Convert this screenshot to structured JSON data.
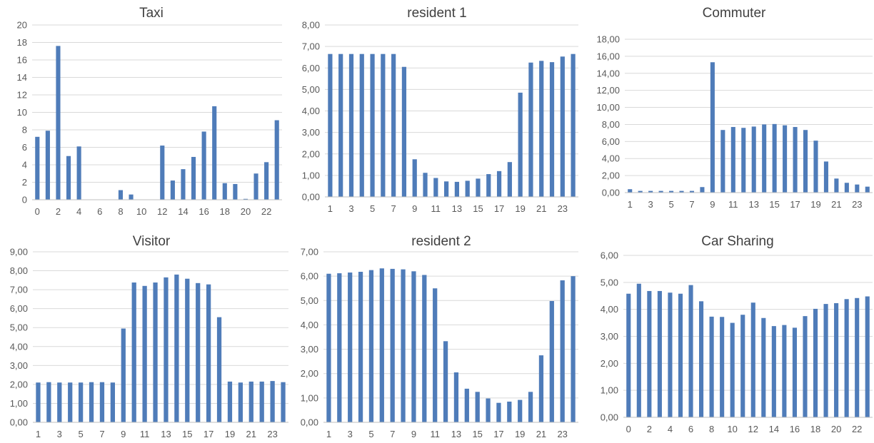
{
  "chart_data": [
    {
      "type": "bar",
      "title": "Taxi",
      "xlabel": "",
      "ylabel": "",
      "x": [
        0,
        1,
        2,
        3,
        4,
        5,
        6,
        7,
        8,
        9,
        10,
        11,
        12,
        13,
        14,
        15,
        16,
        17,
        18,
        19,
        20,
        21,
        22,
        23
      ],
      "x_tick_labels": [
        "0",
        "2",
        "4",
        "6",
        "8",
        "10",
        "12",
        "14",
        "16",
        "18",
        "20",
        "22"
      ],
      "x_tick_values": [
        0,
        2,
        4,
        6,
        8,
        10,
        12,
        14,
        16,
        18,
        20,
        22
      ],
      "y_tick_labels": [
        "0",
        "2",
        "4",
        "6",
        "8",
        "10",
        "12",
        "14",
        "16",
        "18",
        "20"
      ],
      "ylim": [
        0,
        20
      ],
      "values": [
        7.2,
        7.9,
        17.6,
        5.0,
        6.1,
        0,
        0,
        0,
        1.1,
        0.6,
        0,
        0,
        6.2,
        2.2,
        3.5,
        4.9,
        7.8,
        10.7,
        1.9,
        1.8,
        0.1,
        3.0,
        4.3,
        9.1
      ],
      "color": "#4f7cb9",
      "grid": true
    },
    {
      "type": "bar",
      "title": "resident 1",
      "xlabel": "",
      "ylabel": "",
      "x": [
        1,
        2,
        3,
        4,
        5,
        6,
        7,
        8,
        9,
        10,
        11,
        12,
        13,
        14,
        15,
        16,
        17,
        18,
        19,
        20,
        21,
        22,
        23,
        24
      ],
      "x_tick_labels": [
        "1",
        "3",
        "5",
        "7",
        "9",
        "11",
        "13",
        "15",
        "17",
        "19",
        "21",
        "23"
      ],
      "x_tick_values": [
        1,
        3,
        5,
        7,
        9,
        11,
        13,
        15,
        17,
        19,
        21,
        23
      ],
      "y_tick_labels": [
        "0,00",
        "1,00",
        "2,00",
        "3,00",
        "4,00",
        "5,00",
        "6,00",
        "7,00",
        "8,00"
      ],
      "ylim": [
        0,
        8
      ],
      "values": [
        6.65,
        6.65,
        6.65,
        6.65,
        6.65,
        6.65,
        6.65,
        6.05,
        1.75,
        1.12,
        0.88,
        0.72,
        0.7,
        0.75,
        0.85,
        1.06,
        1.2,
        1.62,
        4.85,
        6.25,
        6.33,
        6.27,
        6.53,
        6.65
      ],
      "color": "#4f7cb9",
      "grid": true
    },
    {
      "type": "bar",
      "title": "Commuter",
      "xlabel": "",
      "ylabel": "",
      "x": [
        1,
        2,
        3,
        4,
        5,
        6,
        7,
        8,
        9,
        10,
        11,
        12,
        13,
        14,
        15,
        16,
        17,
        18,
        19,
        20,
        21,
        22,
        23,
        24
      ],
      "x_tick_labels": [
        "1",
        "3",
        "5",
        "7",
        "9",
        "11",
        "13",
        "15",
        "17",
        "19",
        "21",
        "23"
      ],
      "x_tick_values": [
        1,
        3,
        5,
        7,
        9,
        11,
        13,
        15,
        17,
        19,
        21,
        23
      ],
      "y_tick_labels": [
        "0,00",
        "2,00",
        "4,00",
        "6,00",
        "8,00",
        "10,00",
        "12,00",
        "14,00",
        "16,00",
        "18,00"
      ],
      "ylim": [
        0,
        18
      ],
      "values": [
        0.4,
        0.2,
        0.2,
        0.2,
        0.2,
        0.2,
        0.2,
        0.65,
        15.3,
        7.35,
        7.7,
        7.6,
        7.75,
        8.0,
        8.05,
        7.9,
        7.7,
        7.35,
        6.1,
        3.65,
        1.65,
        1.15,
        0.95,
        0.7
      ],
      "color": "#4f7cb9",
      "grid": true
    },
    {
      "type": "bar",
      "title": "Visitor",
      "xlabel": "",
      "ylabel": "",
      "x": [
        1,
        2,
        3,
        4,
        5,
        6,
        7,
        8,
        9,
        10,
        11,
        12,
        13,
        14,
        15,
        16,
        17,
        18,
        19,
        20,
        21,
        22,
        23,
        24
      ],
      "x_tick_labels": [
        "1",
        "3",
        "5",
        "7",
        "9",
        "11",
        "13",
        "15",
        "17",
        "19",
        "21",
        "23"
      ],
      "x_tick_values": [
        1,
        3,
        5,
        7,
        9,
        11,
        13,
        15,
        17,
        19,
        21,
        23
      ],
      "y_tick_labels": [
        "0,00",
        "1,00",
        "2,00",
        "3,00",
        "4,00",
        "5,00",
        "6,00",
        "7,00",
        "8,00",
        "9,00"
      ],
      "ylim": [
        0,
        9
      ],
      "values": [
        2.1,
        2.12,
        2.1,
        2.1,
        2.1,
        2.12,
        2.12,
        2.1,
        4.95,
        7.38,
        7.2,
        7.38,
        7.65,
        7.8,
        7.58,
        7.35,
        7.28,
        5.55,
        2.15,
        2.1,
        2.15,
        2.15,
        2.18,
        2.12
      ],
      "color": "#4f7cb9",
      "grid": true
    },
    {
      "type": "bar",
      "title": "resident 2",
      "xlabel": "",
      "ylabel": "",
      "x": [
        1,
        2,
        3,
        4,
        5,
        6,
        7,
        8,
        9,
        10,
        11,
        12,
        13,
        14,
        15,
        16,
        17,
        18,
        19,
        20,
        21,
        22,
        23,
        24
      ],
      "x_tick_labels": [
        "1",
        "3",
        "5",
        "7",
        "9",
        "11",
        "13",
        "15",
        "17",
        "19",
        "21",
        "23"
      ],
      "x_tick_values": [
        1,
        3,
        5,
        7,
        9,
        11,
        13,
        15,
        17,
        19,
        21,
        23
      ],
      "y_tick_labels": [
        "0,00",
        "1,00",
        "2,00",
        "3,00",
        "4,00",
        "5,00",
        "6,00",
        "7,00"
      ],
      "ylim": [
        0,
        7
      ],
      "values": [
        6.1,
        6.12,
        6.15,
        6.18,
        6.25,
        6.32,
        6.3,
        6.28,
        6.2,
        6.05,
        5.5,
        3.33,
        2.05,
        1.38,
        1.25,
        0.98,
        0.8,
        0.85,
        0.92,
        1.25,
        2.75,
        4.98,
        5.83,
        6.0
      ],
      "color": "#4f7cb9",
      "grid": true
    },
    {
      "type": "bar",
      "title": "Car Sharing",
      "xlabel": "",
      "ylabel": "",
      "x": [
        0,
        1,
        2,
        3,
        4,
        5,
        6,
        7,
        8,
        9,
        10,
        11,
        12,
        13,
        14,
        15,
        16,
        17,
        18,
        19,
        20,
        21,
        22,
        23
      ],
      "x_tick_labels": [
        "0",
        "2",
        "4",
        "6",
        "8",
        "10",
        "12",
        "14",
        "16",
        "18",
        "20",
        "22"
      ],
      "x_tick_values": [
        0,
        2,
        4,
        6,
        8,
        10,
        12,
        14,
        16,
        18,
        20,
        22
      ],
      "y_tick_labels": [
        "0,00",
        "1,00",
        "2,00",
        "3,00",
        "4,00",
        "5,00",
        "6,00"
      ],
      "ylim": [
        0,
        6
      ],
      "values": [
        4.58,
        4.95,
        4.68,
        4.68,
        4.62,
        4.58,
        4.9,
        4.3,
        3.73,
        3.72,
        3.5,
        3.8,
        4.25,
        3.68,
        3.38,
        3.42,
        3.32,
        3.75,
        4.02,
        4.2,
        4.23,
        4.38,
        4.42,
        4.48
      ],
      "color": "#4f7cb9",
      "grid": true
    }
  ]
}
